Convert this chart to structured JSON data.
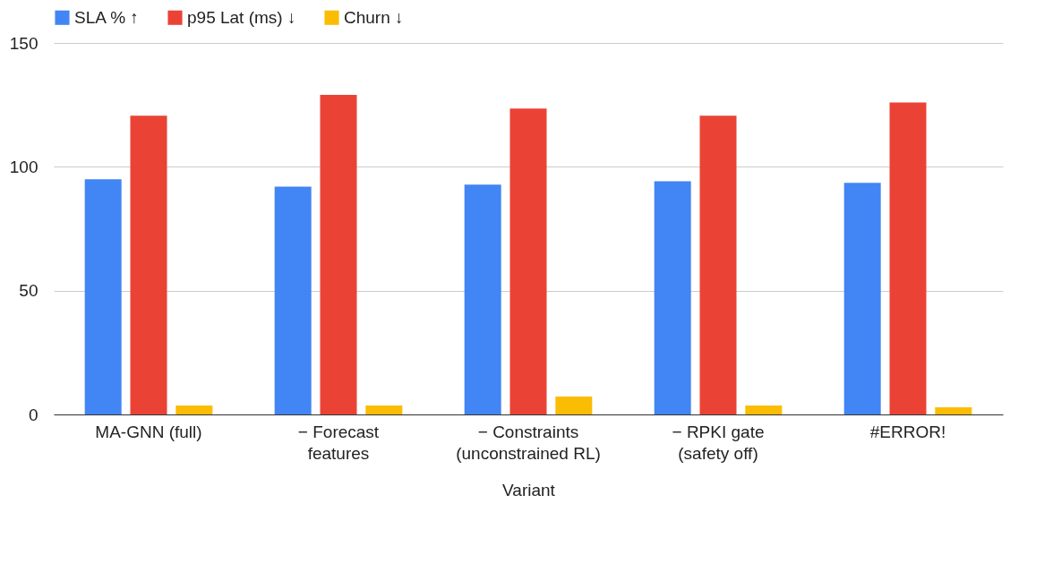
{
  "chart_data": {
    "type": "bar",
    "xlabel": "Variant",
    "categories": [
      "MA-GNN (full)",
      "− Forecast features",
      "− Constraints (unconstrained RL)",
      "− RPKI gate (safety off)",
      "#ERROR!"
    ],
    "series": [
      {
        "name": "SLA % ↑",
        "color": "#4285f4",
        "values": [
          95,
          92,
          92.8,
          94.2,
          93.5
        ]
      },
      {
        "name": "p95 Lat (ms) ↓",
        "color": "#ea4335",
        "values": [
          120.6,
          129,
          123.5,
          120.6,
          126
        ]
      },
      {
        "name": "Churn ↓",
        "color": "#fbbc04",
        "values": [
          3.6,
          3.6,
          7.2,
          3.6,
          2.9
        ]
      }
    ],
    "ylim": [
      0,
      150
    ],
    "yticks": [
      0,
      50,
      100,
      150
    ],
    "grid": "y",
    "legend": "top"
  }
}
